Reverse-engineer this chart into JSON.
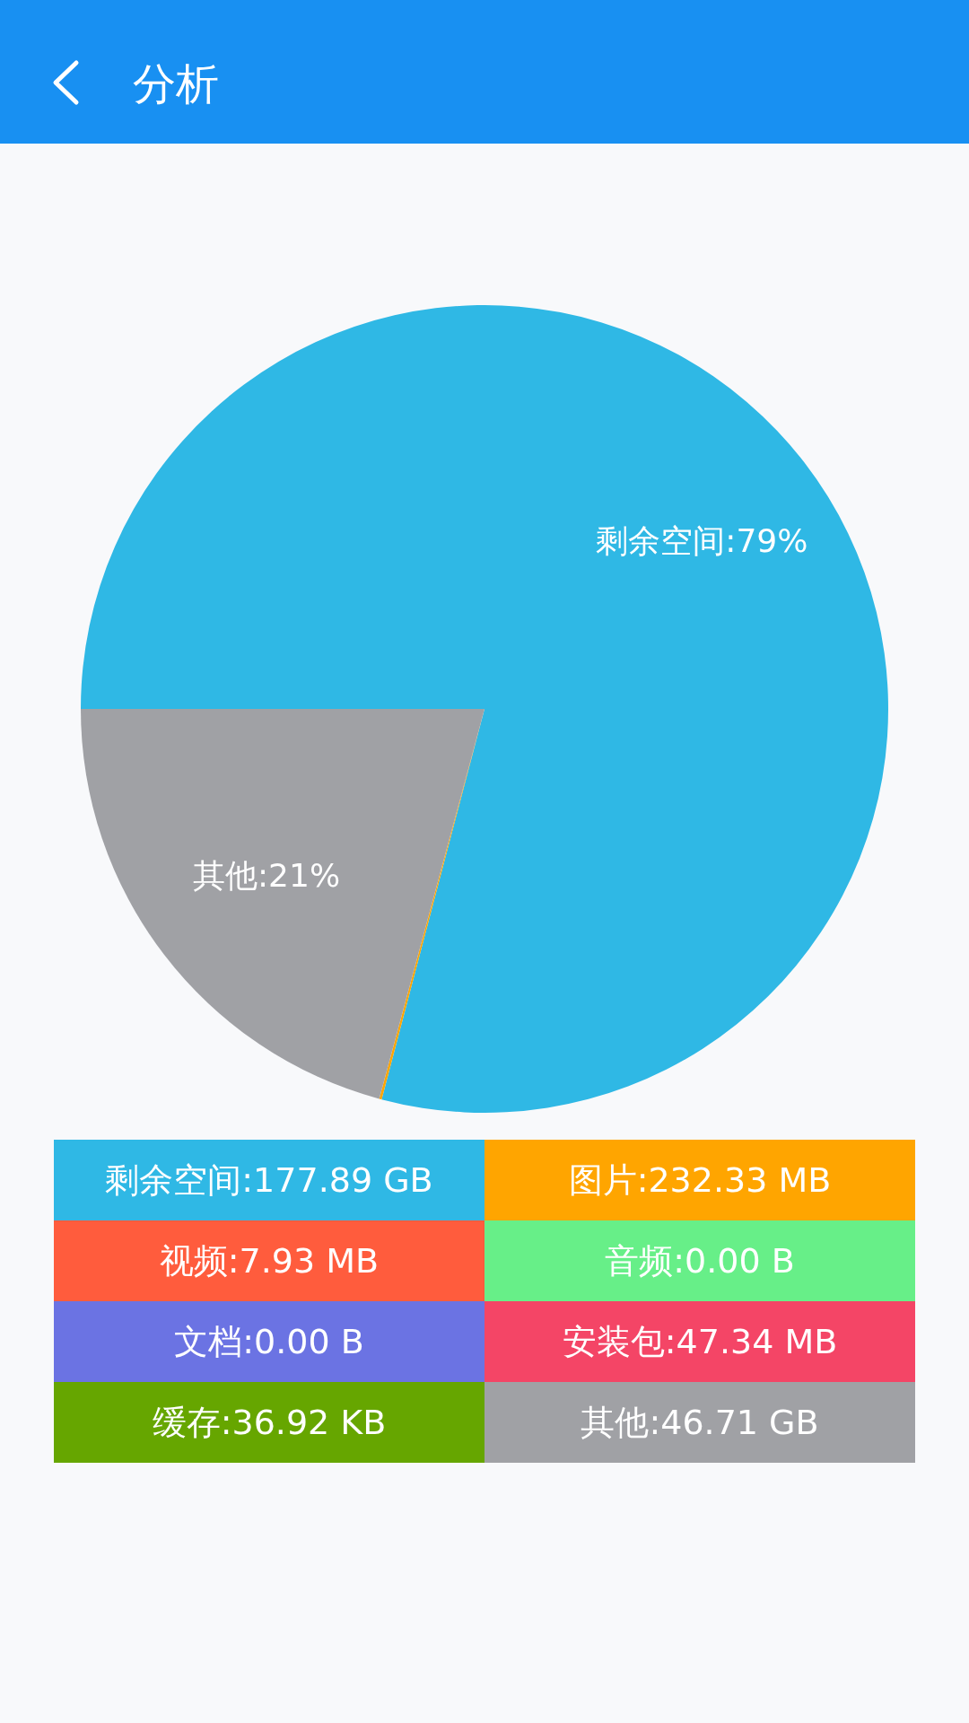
{
  "chart_data": {
    "type": "pie",
    "title": "分析",
    "categories": [
      "剩余空间",
      "图片",
      "视频",
      "音频",
      "文档",
      "安装包",
      "缓存",
      "其他"
    ],
    "values": [
      79.1,
      0.1,
      0,
      0,
      0,
      0,
      0,
      20.8
    ],
    "colors": [
      "#2fb8e5",
      "#ffa500",
      "#ff5c3d",
      "#67ef88",
      "#6b73e3",
      "#f44566",
      "#66a600",
      "#a0a1a5"
    ],
    "value_labels": [
      ":79%",
      null,
      null,
      null,
      null,
      null,
      null,
      ":21%"
    ],
    "annotations": [
      ":177.89 GB",
      ":232.33 MB",
      ":7.93 MB",
      ":0.00 B",
      ":0.00 B",
      ":47.34 MB",
      ":36.92 KB",
      ":46.71 GB"
    ]
  }
}
